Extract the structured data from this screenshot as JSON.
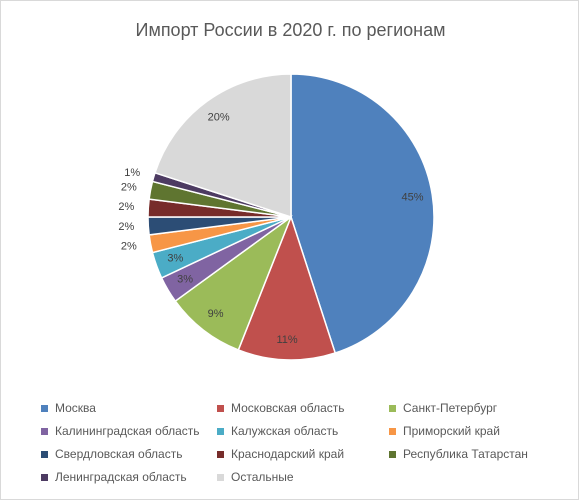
{
  "chart_data": {
    "type": "pie",
    "title": "Импорт России в 2020 г. по регионам",
    "legend_position": "bottom",
    "slices": [
      {
        "name": "Москва",
        "value": 45,
        "label": "45%",
        "color": "#4f81bd"
      },
      {
        "name": "Московская область",
        "value": 11,
        "label": "11%",
        "color": "#c0504d"
      },
      {
        "name": "Санкт-Петербург",
        "value": 9,
        "label": "9%",
        "color": "#9bbb59"
      },
      {
        "name": "Калининградская область",
        "value": 3,
        "label": "3%",
        "color": "#8064a2"
      },
      {
        "name": "Калужская область",
        "value": 3,
        "label": "3%",
        "color": "#4bacc6"
      },
      {
        "name": "Приморский край",
        "value": 2,
        "label": "2%",
        "color": "#f79646"
      },
      {
        "name": "Свердловская область",
        "value": 2,
        "label": "2%",
        "color": "#2c4d75"
      },
      {
        "name": "Краснодарский край",
        "value": 2,
        "label": "2%",
        "color": "#772c2a"
      },
      {
        "name": "Республика Татарстан",
        "value": 2,
        "label": "2%",
        "color": "#5f7530"
      },
      {
        "name": "Ленинградская область",
        "value": 1,
        "label": "1%",
        "color": "#4d3b62"
      },
      {
        "name": "Остальные",
        "value": 20,
        "label": "20%",
        "color": "#d9d9d9"
      }
    ]
  }
}
